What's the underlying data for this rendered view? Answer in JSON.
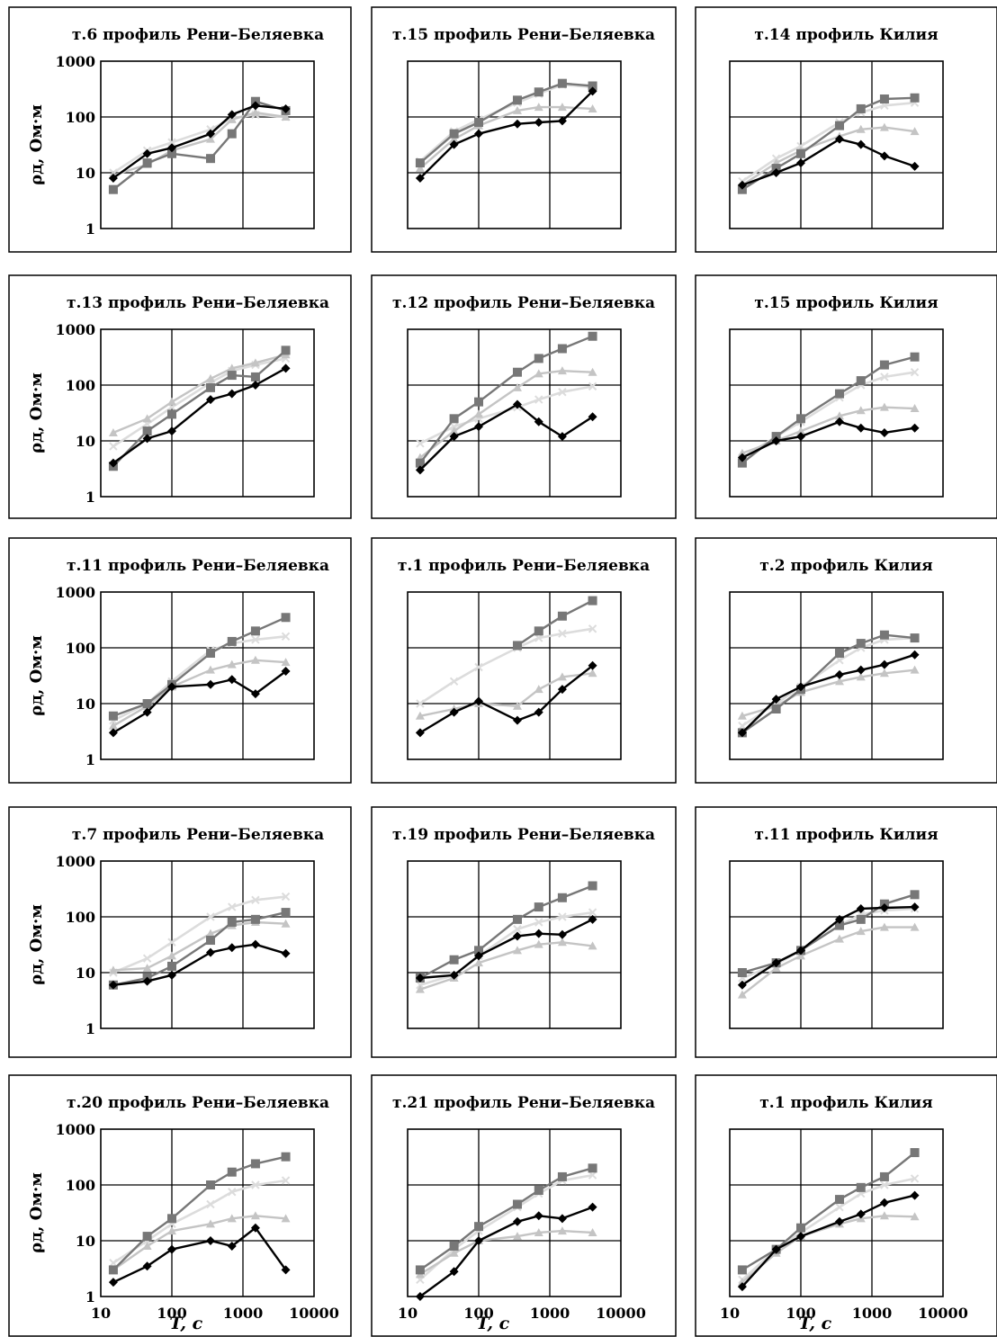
{
  "figure": {
    "ylabel": "ρд, Ом·м",
    "xlabel": "T, c",
    "colors": {
      "s1": "#000000",
      "s2": "#777777",
      "s3": "#c4c4c4",
      "s4": "#dcdcdc"
    }
  },
  "chart_data": [
    {
      "type": "line",
      "title": "т.6 профиль Рени–Беляевка",
      "x": [
        15,
        45,
        100,
        350,
        700,
        1500,
        4000
      ],
      "xlim": [
        10,
        10000
      ],
      "ylim": [
        1,
        1000
      ],
      "xscale": "log",
      "yscale": "log",
      "yticks": [
        "1",
        "10",
        "100",
        "1000"
      ],
      "xticks": [],
      "series": [
        {
          "values": [
            8,
            22,
            28,
            50,
            110,
            160,
            140
          ]
        },
        {
          "values": [
            5,
            15,
            22,
            18,
            50,
            190,
            130
          ]
        },
        {
          "values": [
            9,
            14,
            25,
            40,
            90,
            120,
            100
          ]
        },
        {
          "values": [
            10,
            25,
            35,
            60,
            95,
            110,
            100
          ]
        }
      ]
    },
    {
      "type": "line",
      "title": "т.15 профиль Рени–Беляевка",
      "x": [
        15,
        45,
        100,
        350,
        700,
        1500,
        4000
      ],
      "xlim": [
        10,
        10000
      ],
      "ylim": [
        1,
        1000
      ],
      "xscale": "log",
      "yscale": "log",
      "yticks": [],
      "xticks": [],
      "series": [
        {
          "values": [
            8,
            32,
            50,
            75,
            80,
            85,
            290
          ]
        },
        {
          "values": [
            15,
            50,
            80,
            200,
            280,
            400,
            360
          ]
        },
        {
          "values": [
            12,
            40,
            70,
            130,
            150,
            150,
            140
          ]
        },
        {
          "values": [
            16,
            55,
            90,
            180,
            260,
            380,
            340
          ]
        }
      ]
    },
    {
      "type": "line",
      "title": "т.14 профиль Килия",
      "x": [
        15,
        45,
        100,
        350,
        700,
        1500,
        4000
      ],
      "xlim": [
        10,
        10000
      ],
      "ylim": [
        1,
        1000
      ],
      "xscale": "log",
      "yscale": "log",
      "yticks": [],
      "xticks": [],
      "series": [
        {
          "values": [
            6,
            10,
            15,
            40,
            32,
            20,
            13
          ]
        },
        {
          "values": [
            5,
            12,
            22,
            70,
            140,
            210,
            220
          ]
        },
        {
          "values": [
            6,
            15,
            25,
            45,
            60,
            65,
            55
          ]
        },
        {
          "values": [
            7,
            18,
            30,
            80,
            120,
            160,
            180
          ]
        }
      ]
    },
    {
      "type": "line",
      "title": "т.13 профиль Рени–Беляевка",
      "x": [
        15,
        45,
        100,
        350,
        700,
        1500,
        4000
      ],
      "xlim": [
        10,
        10000
      ],
      "ylim": [
        1,
        1000
      ],
      "xscale": "log",
      "yscale": "log",
      "yticks": [
        "1",
        "10",
        "100",
        "1000"
      ],
      "xticks": [],
      "series": [
        {
          "values": [
            4,
            11,
            15,
            55,
            70,
            100,
            200
          ]
        },
        {
          "values": [
            3.5,
            15,
            30,
            90,
            150,
            140,
            420
          ]
        },
        {
          "values": [
            14,
            25,
            50,
            130,
            200,
            250,
            350
          ]
        },
        {
          "values": [
            8,
            20,
            40,
            110,
            180,
            230,
            300
          ]
        }
      ]
    },
    {
      "type": "line",
      "title": "т.12 профиль Рени–Беляевка",
      "x": [
        15,
        45,
        100,
        350,
        700,
        1500,
        4000
      ],
      "xlim": [
        10,
        10000
      ],
      "ylim": [
        1,
        1000
      ],
      "xscale": "log",
      "yscale": "log",
      "yticks": [],
      "xticks": [],
      "series": [
        {
          "values": [
            3,
            12,
            18,
            45,
            22,
            12,
            27
          ]
        },
        {
          "values": [
            4,
            25,
            50,
            170,
            300,
            450,
            750
          ]
        },
        {
          "values": [
            5,
            15,
            30,
            90,
            160,
            180,
            170
          ]
        },
        {
          "values": [
            9,
            18,
            25,
            40,
            55,
            75,
            95
          ]
        }
      ]
    },
    {
      "type": "line",
      "title": "т.15 профиль Килия",
      "x": [
        15,
        45,
        100,
        350,
        700,
        1500,
        4000
      ],
      "xlim": [
        10,
        10000
      ],
      "ylim": [
        1,
        1000
      ],
      "xscale": "log",
      "yscale": "log",
      "yticks": [],
      "xticks": [],
      "series": [
        {
          "values": [
            5,
            10,
            12,
            22,
            17,
            14,
            17
          ]
        },
        {
          "values": [
            4,
            12,
            25,
            70,
            120,
            230,
            320
          ]
        },
        {
          "values": [
            6,
            10,
            15,
            28,
            35,
            40,
            38
          ]
        },
        {
          "values": [
            5,
            12,
            22,
            60,
            100,
            140,
            170
          ]
        }
      ]
    },
    {
      "type": "line",
      "title": "т.11 профиль Рени–Беляевка",
      "x": [
        15,
        45,
        100,
        350,
        700,
        1500,
        4000
      ],
      "xlim": [
        10,
        10000
      ],
      "ylim": [
        1,
        1000
      ],
      "xscale": "log",
      "yscale": "log",
      "yticks": [
        "1",
        "10",
        "100",
        "1000"
      ],
      "xticks": [],
      "series": [
        {
          "values": [
            3,
            7,
            20,
            22,
            27,
            15,
            38
          ]
        },
        {
          "values": [
            6,
            10,
            22,
            80,
            130,
            200,
            350
          ]
        },
        {
          "values": [
            4,
            9,
            20,
            40,
            50,
            60,
            55
          ]
        },
        {
          "values": [
            5,
            10,
            25,
            90,
            120,
            140,
            160
          ]
        }
      ]
    },
    {
      "type": "line",
      "title": "т.1 профиль Рени–Беляевка",
      "x": [
        15,
        45,
        100,
        350,
        700,
        1500,
        4000
      ],
      "xlim": [
        10,
        10000
      ],
      "ylim": [
        1,
        1000
      ],
      "xscale": "log",
      "yscale": "log",
      "yticks": [],
      "xticks": [],
      "series": [
        {
          "values": [
            3,
            7,
            11,
            5,
            7,
            18,
            48
          ]
        },
        {
          "values": [
            null,
            null,
            null,
            110,
            200,
            370,
            700
          ]
        },
        {
          "values": [
            6,
            8,
            10,
            9,
            18,
            30,
            35
          ]
        },
        {
          "values": [
            10,
            25,
            45,
            100,
            150,
            180,
            220
          ]
        }
      ]
    },
    {
      "type": "line",
      "title": "т.2 профиль Килия",
      "x": [
        15,
        45,
        100,
        350,
        700,
        1500,
        4000
      ],
      "xlim": [
        10,
        10000
      ],
      "ylim": [
        1,
        1000
      ],
      "xscale": "log",
      "yscale": "log",
      "yticks": [],
      "xticks": [],
      "series": [
        {
          "values": [
            3,
            12,
            20,
            33,
            40,
            50,
            75
          ]
        },
        {
          "values": [
            3,
            8,
            18,
            80,
            120,
            170,
            150
          ]
        },
        {
          "values": [
            6,
            9,
            16,
            25,
            30,
            35,
            40
          ]
        },
        {
          "values": [
            4,
            10,
            20,
            60,
            100,
            140,
            150
          ]
        }
      ]
    },
    {
      "type": "line",
      "title": "т.7 профиль Рени–Беляевка",
      "x": [
        15,
        45,
        100,
        350,
        700,
        1500,
        4000
      ],
      "xlim": [
        10,
        10000
      ],
      "ylim": [
        1,
        1000
      ],
      "xscale": "log",
      "yscale": "log",
      "yticks": [
        "1",
        "10",
        "100",
        "1000"
      ],
      "xticks": [],
      "series": [
        {
          "values": [
            6,
            7,
            9,
            23,
            28,
            32,
            22
          ]
        },
        {
          "values": [
            6,
            8,
            13,
            38,
            80,
            90,
            120
          ]
        },
        {
          "values": [
            11,
            12,
            20,
            50,
            70,
            80,
            75
          ]
        },
        {
          "values": [
            10,
            18,
            35,
            100,
            150,
            200,
            230
          ]
        }
      ]
    },
    {
      "type": "line",
      "title": "т.19 профиль Рени–Беляевка",
      "x": [
        15,
        45,
        100,
        350,
        700,
        1500,
        4000
      ],
      "xlim": [
        10,
        10000
      ],
      "ylim": [
        1,
        1000
      ],
      "xscale": "log",
      "yscale": "log",
      "yticks": [],
      "xticks": [],
      "series": [
        {
          "values": [
            8,
            9,
            20,
            45,
            50,
            48,
            90
          ]
        },
        {
          "values": [
            8,
            17,
            25,
            90,
            150,
            220,
            360
          ]
        },
        {
          "values": [
            5,
            8,
            15,
            25,
            32,
            35,
            30
          ]
        },
        {
          "values": [
            6,
            9,
            20,
            60,
            80,
            100,
            120
          ]
        }
      ]
    },
    {
      "type": "line",
      "title": "т.11 профиль Килия",
      "x": [
        15,
        45,
        100,
        350,
        700,
        1500,
        4000
      ],
      "xlim": [
        10,
        10000
      ],
      "ylim": [
        1,
        1000
      ],
      "xscale": "log",
      "yscale": "log",
      "yticks": [],
      "xticks": [],
      "series": [
        {
          "values": [
            6,
            15,
            25,
            90,
            140,
            145,
            150
          ]
        },
        {
          "values": [
            10,
            15,
            25,
            70,
            90,
            170,
            250
          ]
        },
        {
          "values": [
            4,
            12,
            20,
            40,
            55,
            65,
            65
          ]
        },
        {
          "values": [
            8,
            14,
            25,
            70,
            110,
            130,
            140
          ]
        }
      ]
    },
    {
      "type": "line",
      "title": "т.20 профиль Рени–Беляевка",
      "x": [
        15,
        45,
        100,
        350,
        700,
        1500,
        4000
      ],
      "xlim": [
        10,
        10000
      ],
      "ylim": [
        1,
        1000
      ],
      "xscale": "log",
      "yscale": "log",
      "yticks": [
        "1",
        "10",
        "100",
        "1000"
      ],
      "xticks": [
        "10",
        "100",
        "1000",
        "10000"
      ],
      "series": [
        {
          "values": [
            1.8,
            3.5,
            7,
            10,
            8,
            17,
            3
          ]
        },
        {
          "values": [
            3,
            12,
            25,
            100,
            170,
            240,
            320
          ]
        },
        {
          "values": [
            3,
            8,
            15,
            20,
            25,
            28,
            25
          ]
        },
        {
          "values": [
            4,
            10,
            20,
            45,
            75,
            100,
            120
          ]
        }
      ]
    },
    {
      "type": "line",
      "title": "т.21 профиль Рени–Беляевка",
      "x": [
        15,
        45,
        100,
        350,
        700,
        1500,
        4000
      ],
      "xlim": [
        10,
        10000
      ],
      "ylim": [
        1,
        1000
      ],
      "xscale": "log",
      "yscale": "log",
      "yticks": [],
      "xticks": [
        "10",
        "100",
        "1000",
        "10000"
      ],
      "series": [
        {
          "values": [
            1,
            2.8,
            10,
            22,
            28,
            25,
            40
          ]
        },
        {
          "values": [
            3,
            8,
            18,
            45,
            80,
            140,
            200
          ]
        },
        {
          "values": [
            2.5,
            6,
            10,
            12,
            14,
            15,
            14
          ]
        },
        {
          "values": [
            2,
            7,
            15,
            40,
            70,
            120,
            150
          ]
        }
      ]
    },
    {
      "type": "line",
      "title": "т.1 профиль Килия",
      "x": [
        15,
        45,
        100,
        350,
        700,
        1500,
        4000
      ],
      "xlim": [
        10,
        10000
      ],
      "ylim": [
        1,
        1000
      ],
      "xscale": "log",
      "yscale": "log",
      "yticks": [],
      "xticks": [
        "10",
        "100",
        "1000",
        "10000"
      ],
      "series": [
        {
          "values": [
            1.5,
            7,
            12,
            22,
            30,
            48,
            65
          ]
        },
        {
          "values": [
            3,
            7,
            17,
            55,
            90,
            140,
            380
          ]
        },
        {
          "values": [
            1.8,
            6,
            12,
            20,
            25,
            28,
            27
          ]
        },
        {
          "values": [
            2,
            7,
            14,
            40,
            70,
            100,
            130
          ]
        }
      ]
    }
  ]
}
